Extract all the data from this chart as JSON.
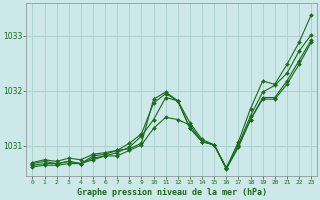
{
  "background_color": "#cce8e8",
  "grid_color": "#aacccc",
  "line_color": "#1a6b1a",
  "title": "Graphe pression niveau de la mer (hPa)",
  "xlim": [
    -0.5,
    23.5
  ],
  "ylim": [
    1030.45,
    1033.6
  ],
  "yticks": [
    1031,
    1032,
    1033
  ],
  "xticks": [
    0,
    1,
    2,
    3,
    4,
    5,
    6,
    7,
    8,
    9,
    10,
    11,
    12,
    13,
    14,
    15,
    16,
    17,
    18,
    19,
    20,
    21,
    22,
    23
  ],
  "series": [
    [
      1030.7,
      1030.75,
      1030.72,
      1030.78,
      1030.75,
      1030.85,
      1030.88,
      1030.92,
      1030.95,
      1031.05,
      1031.85,
      1031.98,
      1031.82,
      1031.32,
      1031.08,
      1031.02,
      1030.6,
      1031.08,
      1031.68,
      1032.18,
      1032.12,
      1032.48,
      1032.88,
      1033.38
    ],
    [
      1030.68,
      1030.72,
      1030.68,
      1030.72,
      1030.68,
      1030.82,
      1030.85,
      1030.92,
      1031.05,
      1031.22,
      1031.78,
      1031.95,
      1031.82,
      1031.42,
      1031.12,
      1031.02,
      1030.6,
      1031.02,
      1031.55,
      1031.98,
      1032.1,
      1032.32,
      1032.72,
      1033.02
    ],
    [
      1030.65,
      1030.68,
      1030.68,
      1030.72,
      1030.68,
      1030.78,
      1030.82,
      1030.88,
      1030.98,
      1031.18,
      1031.48,
      1031.88,
      1031.82,
      1031.32,
      1031.08,
      1031.02,
      1030.6,
      1031.0,
      1031.48,
      1031.88,
      1031.88,
      1032.18,
      1032.55,
      1032.92
    ],
    [
      1030.62,
      1030.65,
      1030.65,
      1030.68,
      1030.68,
      1030.75,
      1030.82,
      1030.82,
      1030.92,
      1031.02,
      1031.32,
      1031.52,
      1031.48,
      1031.38,
      1031.08,
      1031.02,
      1030.58,
      1030.98,
      1031.48,
      1031.85,
      1031.85,
      1032.12,
      1032.48,
      1032.88
    ]
  ]
}
